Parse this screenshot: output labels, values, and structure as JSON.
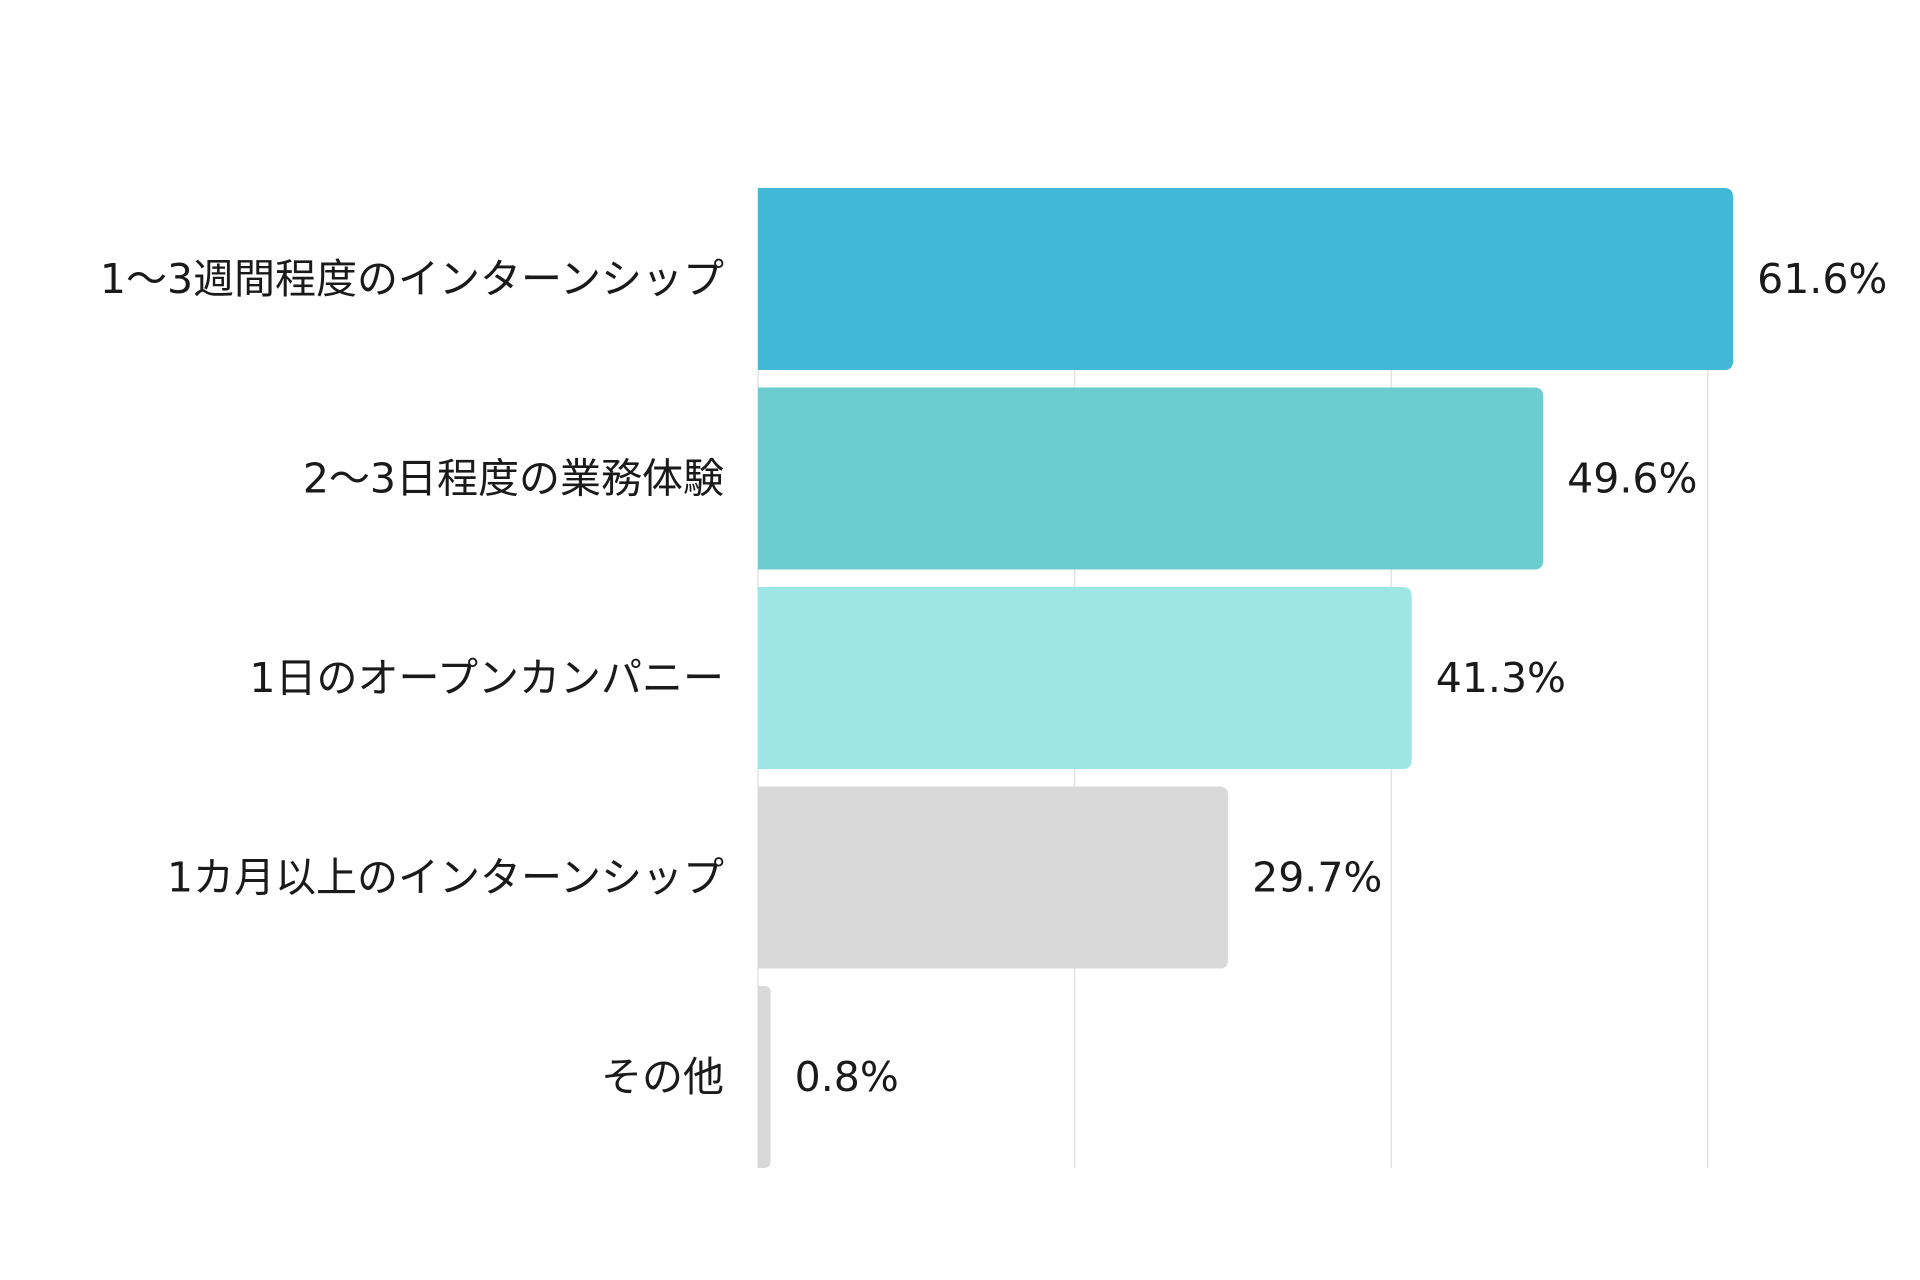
{
  "chart_data": {
    "type": "bar",
    "orientation": "horizontal",
    "title": "",
    "xlabel": "",
    "ylabel": "",
    "categories": [
      "1〜3週間程度のインターンシップ",
      "2〜3日程度の業務体験",
      "1日のオープンカンパニー",
      "1カ月以上のインターンシップ",
      "その他"
    ],
    "values": [
      61.6,
      49.6,
      41.3,
      29.7,
      0.8
    ],
    "value_labels": [
      "61.6%",
      "49.6%",
      "41.3%",
      "29.7%",
      "0.8%"
    ],
    "unit": "%",
    "xlim": [
      0,
      60
    ],
    "grid": true,
    "bar_colors": [
      "#43b8d6",
      "#6dcccf",
      "#9ee6e6",
      "#d9d9d9",
      "#d9d9d9"
    ]
  }
}
